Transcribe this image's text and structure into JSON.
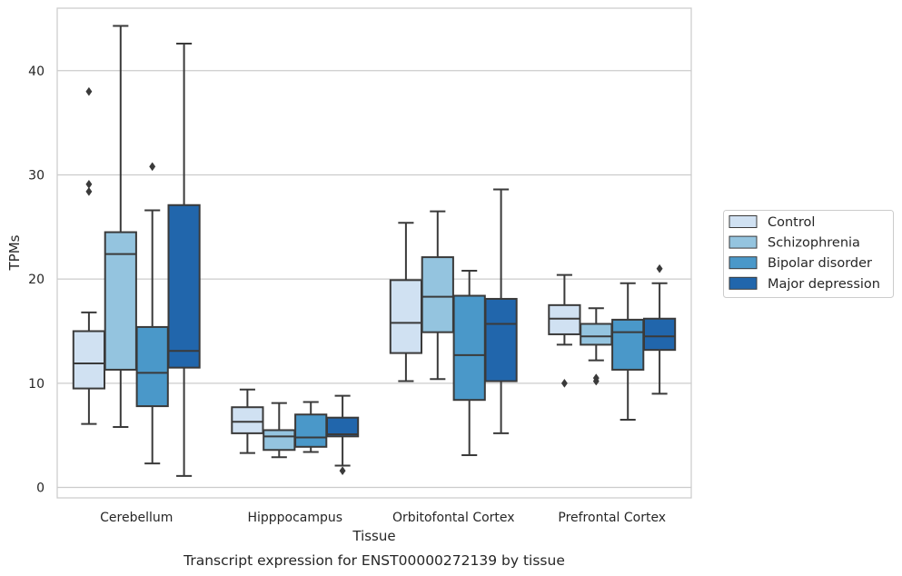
{
  "chart_data": {
    "type": "boxplot",
    "xlabel": "Tissue",
    "ylabel": "TPMs",
    "caption": "Transcript expression for ENST00000272139 by tissue",
    "ylim": [
      -1,
      46
    ],
    "yticks": [
      0,
      10,
      20,
      30,
      40
    ],
    "grid": "horizontal",
    "legend_position": "right",
    "categories": [
      "Cerebellum",
      "Hipppocampus",
      "Orbitofontal Cortex",
      "Prefrontal Cortex"
    ],
    "series": [
      {
        "name": "Control",
        "color": "#d0e1f2",
        "boxes": [
          {
            "whislo": 6.1,
            "q1": 9.5,
            "med": 11.9,
            "q3": 15.0,
            "whishi": 16.8,
            "fliers": [
              28.4,
              29.1,
              38.0
            ]
          },
          {
            "whislo": 3.3,
            "q1": 5.2,
            "med": 6.3,
            "q3": 7.7,
            "whishi": 9.4,
            "fliers": []
          },
          {
            "whislo": 10.2,
            "q1": 12.9,
            "med": 15.8,
            "q3": 19.9,
            "whishi": 25.4,
            "fliers": []
          },
          {
            "whislo": 13.7,
            "q1": 14.7,
            "med": 16.2,
            "q3": 17.5,
            "whishi": 20.4,
            "fliers": [
              10.0
            ]
          }
        ]
      },
      {
        "name": "Schizophrenia",
        "color": "#94c4df",
        "boxes": [
          {
            "whislo": 5.8,
            "q1": 11.3,
            "med": 22.4,
            "q3": 24.5,
            "whishi": 44.3,
            "fliers": []
          },
          {
            "whislo": 2.9,
            "q1": 3.6,
            "med": 4.9,
            "q3": 5.5,
            "whishi": 8.1,
            "fliers": []
          },
          {
            "whislo": 10.4,
            "q1": 14.9,
            "med": 18.3,
            "q3": 22.1,
            "whishi": 26.5,
            "fliers": []
          },
          {
            "whislo": 12.2,
            "q1": 13.7,
            "med": 14.5,
            "q3": 15.7,
            "whishi": 17.2,
            "fliers": [
              10.2,
              10.5
            ]
          }
        ]
      },
      {
        "name": "Bipolar disorder",
        "color": "#4a98c9",
        "boxes": [
          {
            "whislo": 2.3,
            "q1": 7.8,
            "med": 11.0,
            "q3": 15.4,
            "whishi": 26.6,
            "fliers": [
              30.8
            ]
          },
          {
            "whislo": 3.4,
            "q1": 3.9,
            "med": 4.8,
            "q3": 7.0,
            "whishi": 8.2,
            "fliers": []
          },
          {
            "whislo": 3.1,
            "q1": 8.4,
            "med": 12.7,
            "q3": 18.4,
            "whishi": 20.8,
            "fliers": []
          },
          {
            "whislo": 6.5,
            "q1": 11.3,
            "med": 14.9,
            "q3": 16.1,
            "whishi": 19.6,
            "fliers": []
          }
        ]
      },
      {
        "name": "Major depression",
        "color": "#2166ac",
        "boxes": [
          {
            "whislo": 1.1,
            "q1": 11.5,
            "med": 13.1,
            "q3": 27.1,
            "whishi": 42.6,
            "fliers": []
          },
          {
            "whislo": 2.1,
            "q1": 4.9,
            "med": 5.1,
            "q3": 6.7,
            "whishi": 8.8,
            "fliers": [
              1.6
            ]
          },
          {
            "whislo": 5.2,
            "q1": 10.2,
            "med": 15.7,
            "q3": 18.1,
            "whishi": 28.6,
            "fliers": []
          },
          {
            "whislo": 9.0,
            "q1": 13.2,
            "med": 14.5,
            "q3": 16.2,
            "whishi": 19.6,
            "fliers": [
              21.0
            ]
          }
        ]
      }
    ]
  }
}
